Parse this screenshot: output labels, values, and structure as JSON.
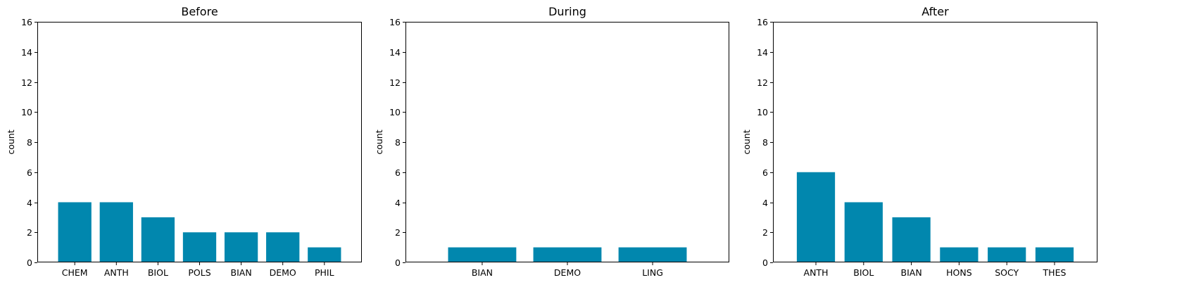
{
  "bar_color": "#0187AE",
  "chart_data": [
    {
      "type": "bar",
      "title": "Before",
      "ylabel": "count",
      "xlabel": "",
      "ylim": [
        0,
        16
      ],
      "yticks": [
        0,
        2,
        4,
        6,
        8,
        10,
        12,
        14,
        16
      ],
      "categories": [
        "CHEM",
        "ANTH",
        "BIOL",
        "POLS",
        "BIAN",
        "DEMO",
        "PHIL"
      ],
      "values": [
        4,
        4,
        3,
        2,
        2,
        2,
        1
      ]
    },
    {
      "type": "bar",
      "title": "During",
      "ylabel": "count",
      "xlabel": "",
      "ylim": [
        0,
        16
      ],
      "yticks": [
        0,
        2,
        4,
        6,
        8,
        10,
        12,
        14,
        16
      ],
      "categories": [
        "BIAN",
        "DEMO",
        "LING"
      ],
      "values": [
        1,
        1,
        1
      ]
    },
    {
      "type": "bar",
      "title": "After",
      "ylabel": "count",
      "xlabel": "",
      "ylim": [
        0,
        16
      ],
      "yticks": [
        0,
        2,
        4,
        6,
        8,
        10,
        12,
        14,
        16
      ],
      "categories": [
        "ANTH",
        "BIOL",
        "BIAN",
        "HONS",
        "SOCY",
        "THES"
      ],
      "values": [
        6,
        4,
        3,
        1,
        1,
        1
      ]
    }
  ]
}
